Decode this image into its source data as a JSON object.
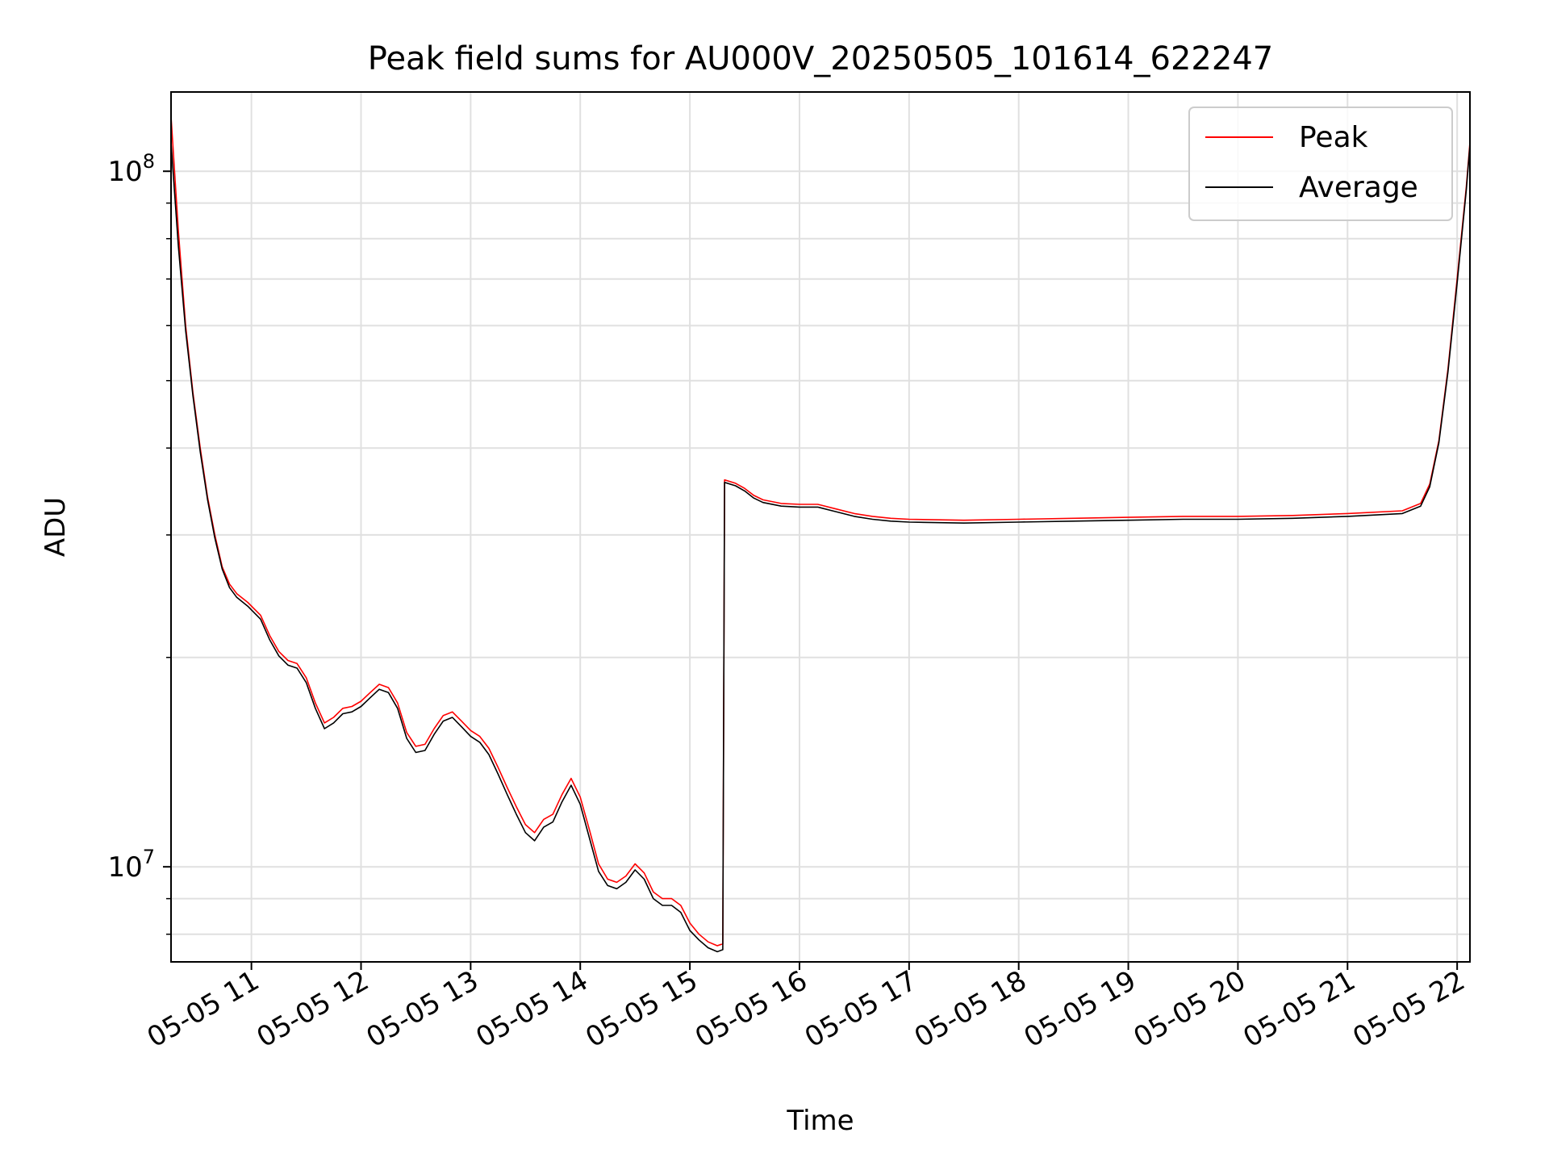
{
  "chart_data": {
    "type": "line",
    "title": "Peak field sums for AU000V_20250505_101614_622247",
    "xlabel": "Time",
    "ylabel": "ADU",
    "yscale": "log",
    "xlim": [
      "2025-05-05 10:16",
      "2025-05-05 22:07"
    ],
    "ylim": [
      7300000,
      130000000
    ],
    "grid": true,
    "legend_position": "top-right",
    "x_tick_labels": [
      "05-05 11",
      "05-05 12",
      "05-05 13",
      "05-05 14",
      "05-05 15",
      "05-05 16",
      "05-05 17",
      "05-05 18",
      "05-05 19",
      "05-05 20",
      "05-05 21",
      "05-05 22"
    ],
    "x_tick_hours": [
      11,
      12,
      13,
      14,
      15,
      16,
      17,
      18,
      19,
      20,
      21,
      22
    ],
    "y_major_tick_labels": [
      {
        "value": 10000000,
        "base": "10",
        "exp": "7"
      },
      {
        "value": 100000000,
        "base": "10",
        "exp": "8"
      }
    ],
    "series": [
      {
        "name": "Peak",
        "color": "#ff0000",
        "points": [
          [
            "10:16",
            120000000
          ],
          [
            "10:20",
            82000000
          ],
          [
            "10:24",
            60000000
          ],
          [
            "10:28",
            48000000
          ],
          [
            "10:32",
            40000000
          ],
          [
            "10:36",
            34000000
          ],
          [
            "10:40",
            30000000
          ],
          [
            "10:44",
            27000000
          ],
          [
            "10:48",
            25500000
          ],
          [
            "10:52",
            24700000
          ],
          [
            "10:58",
            24000000
          ],
          [
            "11:05",
            23000000
          ],
          [
            "11:10",
            21500000
          ],
          [
            "11:15",
            20400000
          ],
          [
            "11:20",
            19800000
          ],
          [
            "11:25",
            19600000
          ],
          [
            "11:30",
            18700000
          ],
          [
            "11:35",
            17200000
          ],
          [
            "11:40",
            16100000
          ],
          [
            "11:45",
            16400000
          ],
          [
            "11:50",
            16900000
          ],
          [
            "11:55",
            17000000
          ],
          [
            "12:00",
            17300000
          ],
          [
            "12:05",
            17800000
          ],
          [
            "12:10",
            18300000
          ],
          [
            "12:15",
            18100000
          ],
          [
            "12:20",
            17200000
          ],
          [
            "12:25",
            15600000
          ],
          [
            "12:30",
            14900000
          ],
          [
            "12:35",
            15000000
          ],
          [
            "12:40",
            15800000
          ],
          [
            "12:45",
            16500000
          ],
          [
            "12:50",
            16700000
          ],
          [
            "12:55",
            16200000
          ],
          [
            "13:00",
            15700000
          ],
          [
            "13:05",
            15400000
          ],
          [
            "13:10",
            14800000
          ],
          [
            "13:15",
            13900000
          ],
          [
            "13:20",
            13000000
          ],
          [
            "13:25",
            12200000
          ],
          [
            "13:30",
            11500000
          ],
          [
            "13:35",
            11200000
          ],
          [
            "13:40",
            11700000
          ],
          [
            "13:45",
            11900000
          ],
          [
            "13:50",
            12700000
          ],
          [
            "13:55",
            13400000
          ],
          [
            "14:00",
            12600000
          ],
          [
            "14:05",
            11300000
          ],
          [
            "14:10",
            10100000
          ],
          [
            "14:15",
            9600000
          ],
          [
            "14:20",
            9500000
          ],
          [
            "14:25",
            9700000
          ],
          [
            "14:30",
            10100000
          ],
          [
            "14:35",
            9800000
          ],
          [
            "14:40",
            9200000
          ],
          [
            "14:45",
            9000000
          ],
          [
            "14:50",
            9000000
          ],
          [
            "14:55",
            8800000
          ],
          [
            "15:00",
            8300000
          ],
          [
            "15:05",
            8000000
          ],
          [
            "15:10",
            7800000
          ],
          [
            "15:15",
            7700000
          ],
          [
            "15:18",
            7750000
          ],
          [
            "15:19",
            36000000
          ],
          [
            "15:25",
            35600000
          ],
          [
            "15:30",
            35000000
          ],
          [
            "15:35",
            34200000
          ],
          [
            "15:40",
            33700000
          ],
          [
            "15:50",
            33300000
          ],
          [
            "16:00",
            33200000
          ],
          [
            "16:10",
            33200000
          ],
          [
            "16:20",
            32700000
          ],
          [
            "16:30",
            32200000
          ],
          [
            "16:40",
            31900000
          ],
          [
            "16:50",
            31700000
          ],
          [
            "17:00",
            31600000
          ],
          [
            "17:30",
            31500000
          ],
          [
            "18:00",
            31600000
          ],
          [
            "18:30",
            31700000
          ],
          [
            "19:00",
            31800000
          ],
          [
            "19:30",
            31900000
          ],
          [
            "20:00",
            31900000
          ],
          [
            "20:30",
            32000000
          ],
          [
            "21:00",
            32200000
          ],
          [
            "21:30",
            32500000
          ],
          [
            "21:40",
            33300000
          ],
          [
            "21:45",
            35500000
          ],
          [
            "21:50",
            41000000
          ],
          [
            "21:55",
            52000000
          ],
          [
            "22:00",
            70000000
          ],
          [
            "22:05",
            95000000
          ],
          [
            "22:07",
            110000000
          ]
        ]
      },
      {
        "name": "Average",
        "color": "#000000",
        "points": [
          [
            "10:16",
            110000000
          ],
          [
            "10:20",
            78000000
          ],
          [
            "10:24",
            59000000
          ],
          [
            "10:28",
            47500000
          ],
          [
            "10:32",
            39500000
          ],
          [
            "10:36",
            33700000
          ],
          [
            "10:40",
            29700000
          ],
          [
            "10:44",
            26800000
          ],
          [
            "10:48",
            25200000
          ],
          [
            "10:52",
            24400000
          ],
          [
            "10:58",
            23700000
          ],
          [
            "11:05",
            22700000
          ],
          [
            "11:10",
            21200000
          ],
          [
            "11:15",
            20100000
          ],
          [
            "11:20",
            19500000
          ],
          [
            "11:25",
            19300000
          ],
          [
            "11:30",
            18400000
          ],
          [
            "11:35",
            16900000
          ],
          [
            "11:40",
            15800000
          ],
          [
            "11:45",
            16100000
          ],
          [
            "11:50",
            16600000
          ],
          [
            "11:55",
            16700000
          ],
          [
            "12:00",
            17000000
          ],
          [
            "12:05",
            17500000
          ],
          [
            "12:10",
            18000000
          ],
          [
            "12:15",
            17800000
          ],
          [
            "12:20",
            16900000
          ],
          [
            "12:25",
            15300000
          ],
          [
            "12:30",
            14600000
          ],
          [
            "12:35",
            14700000
          ],
          [
            "12:40",
            15500000
          ],
          [
            "12:45",
            16200000
          ],
          [
            "12:50",
            16400000
          ],
          [
            "12:55",
            15900000
          ],
          [
            "13:00",
            15400000
          ],
          [
            "13:05",
            15100000
          ],
          [
            "13:10",
            14500000
          ],
          [
            "13:15",
            13600000
          ],
          [
            "13:20",
            12700000
          ],
          [
            "13:25",
            11900000
          ],
          [
            "13:30",
            11200000
          ],
          [
            "13:35",
            10900000
          ],
          [
            "13:40",
            11400000
          ],
          [
            "13:45",
            11600000
          ],
          [
            "13:50",
            12400000
          ],
          [
            "13:55",
            13100000
          ],
          [
            "14:00",
            12300000
          ],
          [
            "14:05",
            11000000
          ],
          [
            "14:10",
            9850000
          ],
          [
            "14:15",
            9400000
          ],
          [
            "14:20",
            9300000
          ],
          [
            "14:25",
            9500000
          ],
          [
            "14:30",
            9900000
          ],
          [
            "14:35",
            9600000
          ],
          [
            "14:40",
            9000000
          ],
          [
            "14:45",
            8800000
          ],
          [
            "14:50",
            8800000
          ],
          [
            "14:55",
            8600000
          ],
          [
            "15:00",
            8100000
          ],
          [
            "15:05",
            7850000
          ],
          [
            "15:10",
            7650000
          ],
          [
            "15:15",
            7550000
          ],
          [
            "15:18",
            7600000
          ],
          [
            "15:19",
            35700000
          ],
          [
            "15:25",
            35300000
          ],
          [
            "15:30",
            34700000
          ],
          [
            "15:35",
            33900000
          ],
          [
            "15:40",
            33400000
          ],
          [
            "15:50",
            33000000
          ],
          [
            "16:00",
            32900000
          ],
          [
            "16:10",
            32900000
          ],
          [
            "16:20",
            32400000
          ],
          [
            "16:30",
            31900000
          ],
          [
            "16:40",
            31600000
          ],
          [
            "16:50",
            31400000
          ],
          [
            "17:00",
            31300000
          ],
          [
            "17:30",
            31200000
          ],
          [
            "18:00",
            31300000
          ],
          [
            "18:30",
            31400000
          ],
          [
            "19:00",
            31500000
          ],
          [
            "19:30",
            31600000
          ],
          [
            "20:00",
            31600000
          ],
          [
            "20:30",
            31700000
          ],
          [
            "21:00",
            31900000
          ],
          [
            "21:30",
            32200000
          ],
          [
            "21:40",
            33000000
          ],
          [
            "21:45",
            35200000
          ],
          [
            "21:50",
            40700000
          ],
          [
            "21:55",
            51500000
          ],
          [
            "22:00",
            69000000
          ],
          [
            "22:05",
            94000000
          ],
          [
            "22:07",
            109000000
          ]
        ]
      }
    ]
  }
}
